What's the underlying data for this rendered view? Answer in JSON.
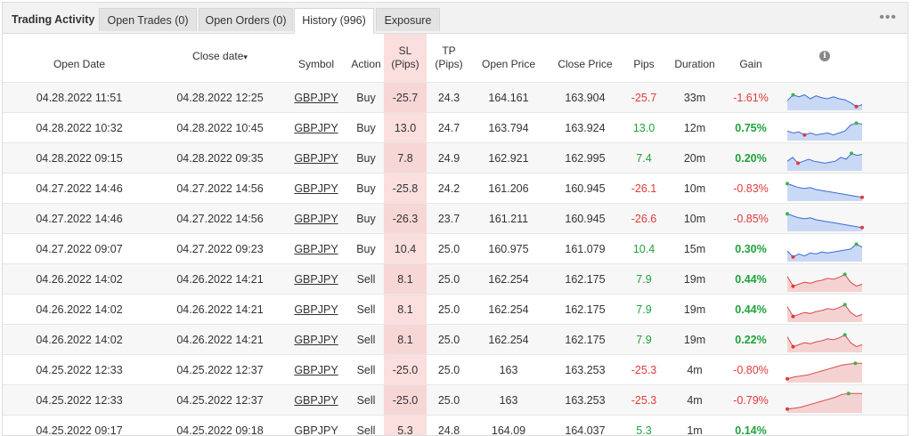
{
  "tabs": {
    "title": "Trading Activity",
    "open_trades": "Open Trades (0)",
    "open_orders": "Open Orders (0)",
    "history": "History (996)",
    "exposure": "Exposure"
  },
  "menu_icon": "more-dots-icon",
  "columns": {
    "open_date": "Open Date",
    "close_date": "Close date",
    "sort_indicator": "▾",
    "symbol": "Symbol",
    "action": "Action",
    "sl_1": "SL",
    "sl_2": "(Pips)",
    "tp_1": "TP",
    "tp_2": "(Pips)",
    "open_price": "Open Price",
    "close_price": "Close Price",
    "pips": "Pips",
    "duration": "Duration",
    "gain": "Gain",
    "info": "i"
  },
  "colors": {
    "buy_chart": "#3d6ad6",
    "buy_fill": "#c9d8f5",
    "sell_chart": "#d94c4c",
    "sell_fill": "#f5d2d2",
    "sl_column": "#fbdede"
  },
  "rows": [
    {
      "open": "04.28.2022 11:51",
      "close": "04.28.2022 12:25",
      "symbol": "GBPJPY",
      "action": "Buy",
      "sl": "-25.7",
      "tp": "24.3",
      "open_price": "164.161",
      "close_price": "163.904",
      "pips": "-25.7",
      "duration": "33m",
      "gain": "-1.61%",
      "spark": [
        0.4,
        0.7,
        0.6,
        0.7,
        0.5,
        0.65,
        0.55,
        0.5,
        0.6,
        0.5,
        0.45,
        0.3,
        0.1,
        0.2
      ]
    },
    {
      "open": "04.28.2022 10:32",
      "close": "04.28.2022 10:45",
      "symbol": "GBPJPY",
      "action": "Buy",
      "sl": "13.0",
      "tp": "24.7",
      "open_price": "163.794",
      "close_price": "163.924",
      "pips": "13.0",
      "duration": "12m",
      "gain": "0.75%",
      "spark": [
        0.4,
        0.3,
        0.35,
        0.2,
        0.3,
        0.2,
        0.25,
        0.3,
        0.2,
        0.3,
        0.4,
        0.7,
        0.8,
        0.75
      ]
    },
    {
      "open": "04.28.2022 09:15",
      "close": "04.28.2022 09:35",
      "symbol": "GBPJPY",
      "action": "Buy",
      "sl": "7.8",
      "tp": "24.9",
      "open_price": "162.921",
      "close_price": "162.995",
      "pips": "7.4",
      "duration": "20m",
      "gain": "0.20%",
      "spark": [
        0.4,
        0.6,
        0.3,
        0.4,
        0.5,
        0.4,
        0.35,
        0.3,
        0.35,
        0.4,
        0.6,
        0.5,
        0.8,
        0.7,
        0.75
      ]
    },
    {
      "open": "04.27.2022 14:46",
      "close": "04.27.2022 14:56",
      "symbol": "GBPJPY",
      "action": "Buy",
      "sl": "-25.8",
      "tp": "24.2",
      "open_price": "161.206",
      "close_price": "160.945",
      "pips": "-26.1",
      "duration": "10m",
      "gain": "-0.83%",
      "spark": [
        0.8,
        0.7,
        0.6,
        0.55,
        0.6,
        0.5,
        0.45,
        0.4,
        0.35,
        0.3,
        0.25,
        0.2,
        0.15,
        0.1
      ]
    },
    {
      "open": "04.27.2022 14:46",
      "close": "04.27.2022 14:56",
      "symbol": "GBPJPY",
      "action": "Buy",
      "sl": "-26.3",
      "tp": "23.7",
      "open_price": "161.211",
      "close_price": "160.945",
      "pips": "-26.6",
      "duration": "10m",
      "gain": "-0.85%",
      "spark": [
        0.8,
        0.7,
        0.6,
        0.55,
        0.6,
        0.5,
        0.45,
        0.4,
        0.35,
        0.3,
        0.25,
        0.2,
        0.15,
        0.1
      ]
    },
    {
      "open": "04.27.2022 09:07",
      "close": "04.27.2022 09:23",
      "symbol": "GBPJPY",
      "action": "Buy",
      "sl": "10.4",
      "tp": "25.0",
      "open_price": "160.975",
      "close_price": "161.079",
      "pips": "10.4",
      "duration": "15m",
      "gain": "0.30%",
      "spark": [
        0.45,
        0.15,
        0.3,
        0.2,
        0.35,
        0.3,
        0.4,
        0.35,
        0.4,
        0.45,
        0.5,
        0.55,
        0.8,
        0.65
      ]
    },
    {
      "open": "04.26.2022 14:02",
      "close": "04.26.2022 14:21",
      "symbol": "GBPJPY",
      "action": "Sell",
      "sl": "8.1",
      "tp": "25.0",
      "open_price": "162.254",
      "close_price": "162.175",
      "pips": "7.9",
      "duration": "19m",
      "gain": "0.44%",
      "spark": [
        0.7,
        0.2,
        0.3,
        0.4,
        0.35,
        0.45,
        0.5,
        0.6,
        0.55,
        0.65,
        0.8,
        0.4,
        0.2,
        0.3
      ]
    },
    {
      "open": "04.26.2022 14:02",
      "close": "04.26.2022 14:21",
      "symbol": "GBPJPY",
      "action": "Sell",
      "sl": "8.1",
      "tp": "25.0",
      "open_price": "162.254",
      "close_price": "162.175",
      "pips": "7.9",
      "duration": "19m",
      "gain": "0.44%",
      "spark": [
        0.7,
        0.2,
        0.3,
        0.4,
        0.35,
        0.45,
        0.5,
        0.6,
        0.55,
        0.65,
        0.8,
        0.4,
        0.2,
        0.3
      ]
    },
    {
      "open": "04.26.2022 14:02",
      "close": "04.26.2022 14:21",
      "symbol": "GBPJPY",
      "action": "Sell",
      "sl": "8.1",
      "tp": "25.0",
      "open_price": "162.254",
      "close_price": "162.175",
      "pips": "7.9",
      "duration": "19m",
      "gain": "0.22%",
      "spark": [
        0.7,
        0.2,
        0.3,
        0.4,
        0.35,
        0.45,
        0.5,
        0.6,
        0.55,
        0.65,
        0.8,
        0.4,
        0.2,
        0.3
      ]
    },
    {
      "open": "04.25.2022 12:33",
      "close": "04.25.2022 12:37",
      "symbol": "GBPJPY",
      "action": "Sell",
      "sl": "-25.0",
      "tp": "25.0",
      "open_price": "163",
      "close_price": "163.253",
      "pips": "-25.3",
      "duration": "4m",
      "gain": "-0.80%",
      "spark": [
        0.1,
        0.2,
        0.25,
        0.3,
        0.4,
        0.5,
        0.6,
        0.7,
        0.8,
        0.85,
        0.9,
        0.9
      ]
    },
    {
      "open": "04.25.2022 12:33",
      "close": "04.25.2022 12:37",
      "symbol": "GBPJPY",
      "action": "Sell",
      "sl": "-25.0",
      "tp": "25.0",
      "open_price": "163",
      "close_price": "163.253",
      "pips": "-25.3",
      "duration": "4m",
      "gain": "-0.79%",
      "spark": [
        0.1,
        0.15,
        0.2,
        0.3,
        0.4,
        0.5,
        0.6,
        0.7,
        0.85,
        0.9,
        0.9,
        0.9
      ]
    },
    {
      "open": "04.25.2022 09:17",
      "close": "04.25.2022 09:18",
      "symbol": "GBPJPY",
      "action": "Sell",
      "sl": "5.3",
      "tp": "24.8",
      "open_price": "164.09",
      "close_price": "164.037",
      "pips": "5.3",
      "duration": "1m",
      "gain": "0.14%",
      "spark": []
    }
  ]
}
